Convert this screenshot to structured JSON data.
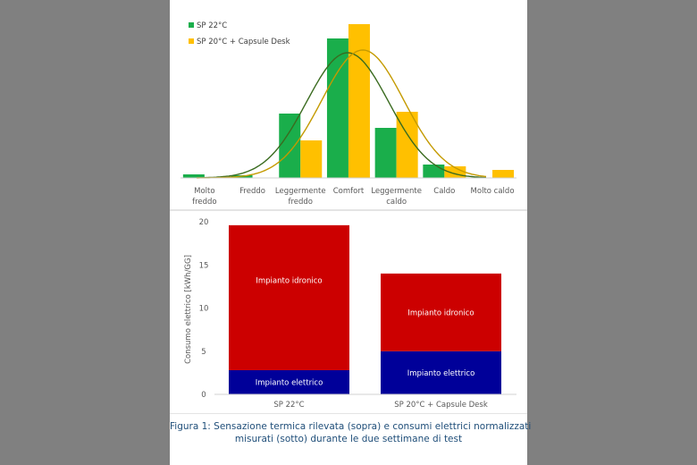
{
  "figure": {
    "caption_line1": "Figura 1: Sensazione termica rilevata (sopra) e consumi elettrici normalizzati",
    "caption_line2": "misurati (sotto) durante le due settimane di test"
  },
  "colors": {
    "background": "#808080",
    "panel": "#ffffff",
    "green": "#1aae4b",
    "yellow": "#ffc000",
    "green_curve": "#3a6b1f",
    "yellow_curve": "#c49a00",
    "red": "#cc0000",
    "blue": "#000099",
    "caption": "#1f4e79"
  },
  "chart_data": [
    {
      "type": "bar",
      "title": "",
      "xlabel": "",
      "ylabel": "",
      "categories": [
        "Molto freddo",
        "Freddo",
        "Leggermente freddo",
        "Comfort",
        "Leggermente caldo",
        "Caldo",
        "Molto caldo"
      ],
      "category_lines": [
        [
          "Molto",
          "freddo"
        ],
        [
          "Freddo"
        ],
        [
          "Leggermente",
          "freddo"
        ],
        [
          "Comfort"
        ],
        [
          "Leggermente",
          "caldo"
        ],
        [
          "Caldo"
        ],
        [
          "Molto caldo"
        ]
      ],
      "series": [
        {
          "name": "SP 22°C",
          "values": [
            2,
            1.5,
            36,
            78,
            28,
            7.5,
            0
          ]
        },
        {
          "name": "SP 20°C + Capsule Desk",
          "values": [
            0,
            0,
            21,
            86,
            37,
            6.5,
            4.5
          ]
        }
      ],
      "overlay_curves": [
        {
          "name": "SP 22°C (distribuzione normale)",
          "peak_category": "Comfort",
          "peak_value": 58
        },
        {
          "name": "SP 20°C + Capsule Desk (distribuzione normale)",
          "peak_category": "Comfort/Leggermente caldo",
          "peak_value": 72
        }
      ],
      "units": "relative frequency (%), axis not shown",
      "legend": {
        "position": "top-left",
        "entries": [
          "SP 22°C",
          "SP 20°C + Capsule Desk"
        ]
      },
      "grid": false
    },
    {
      "type": "bar",
      "stacked": true,
      "title": "",
      "xlabel": "",
      "ylabel": "Consumo elettrico [kWh/GG]",
      "ylim": [
        0,
        20
      ],
      "yticks": [
        0,
        5,
        10,
        15,
        20
      ],
      "categories": [
        "SP 22°C",
        "SP 20°C + Capsule Desk"
      ],
      "series": [
        {
          "name": "Impianto elettrico",
          "values": [
            2.8,
            5.0
          ]
        },
        {
          "name": "Impianto idronico",
          "values": [
            16.8,
            9.0
          ]
        }
      ],
      "totals": [
        19.6,
        14.0
      ],
      "data_labels": [
        "Impianto idronico",
        "Impianto elettrico"
      ],
      "grid": false
    }
  ]
}
